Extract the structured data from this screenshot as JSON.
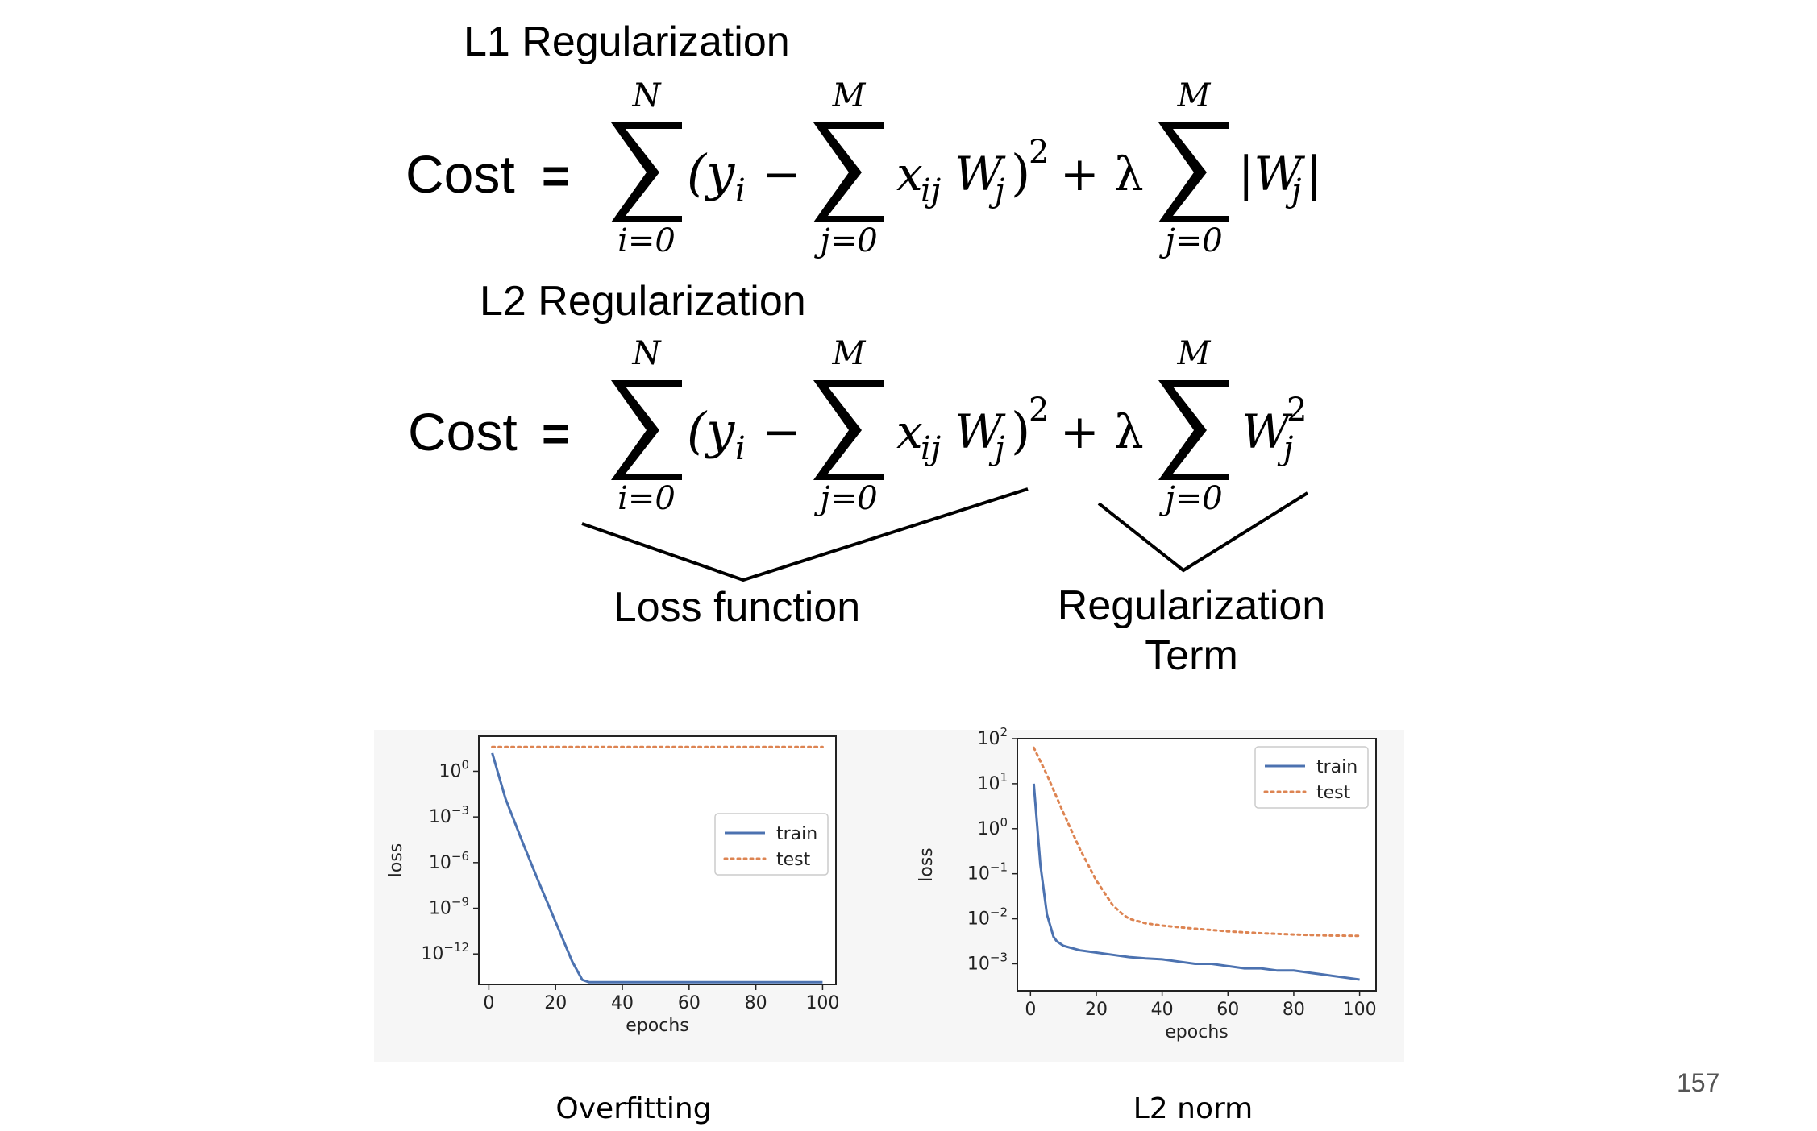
{
  "slide": {
    "page_number": "157"
  },
  "l1": {
    "heading": "L1 Regularization",
    "cost_label": "Cost",
    "equals": "=",
    "sum1": {
      "upper": "N",
      "lower": "i=0"
    },
    "sum2": {
      "upper": "M",
      "lower": "j=0"
    },
    "sum3": {
      "upper": "M",
      "lower": "j=0"
    },
    "term1_open": "(y",
    "term1_sub": "i",
    "minus": "−",
    "term2": "x",
    "term2_sub": "ij",
    "term2_w": "W",
    "term2_wsub": "j",
    "close_pow": ")",
    "pow": "2",
    "plus_lambda": "+ λ",
    "reg_term": "|W",
    "reg_sub": "j",
    "reg_close": "|"
  },
  "l2": {
    "heading": "L2 Regularization",
    "cost_label": "Cost",
    "equals": "=",
    "sum1": {
      "upper": "N",
      "lower": "i=0"
    },
    "sum2": {
      "upper": "M",
      "lower": "j=0"
    },
    "sum3": {
      "upper": "M",
      "lower": "j=0"
    },
    "term1_open": "(y",
    "term1_sub": "i",
    "minus": "−",
    "term2": "x",
    "term2_sub": "ij",
    "term2_w": "W",
    "term2_wsub": "j",
    "close_pow": ")",
    "pow": "2",
    "plus_lambda": "+ λ",
    "reg_term": "W",
    "reg_sub": "j",
    "reg_pow": "2"
  },
  "brackets": {
    "loss_label": "Loss function",
    "reg_label_line1": "Regularization",
    "reg_label_line2": "Term"
  },
  "chart_data": [
    {
      "type": "line",
      "caption": "Overfitting",
      "xlabel": "epochs",
      "ylabel": "loss",
      "xlim": [
        -3,
        104
      ],
      "ylim_log10": [
        -14,
        2.3
      ],
      "y_scale": "log",
      "xticks": [
        "0",
        "20",
        "40",
        "60",
        "80",
        "100"
      ],
      "xtick_values": [
        0,
        20,
        40,
        60,
        80,
        100
      ],
      "yticks": [
        {
          "base": "10",
          "exp": "0",
          "value": 0
        },
        {
          "base": "10",
          "exp": "−3",
          "value": -3
        },
        {
          "base": "10",
          "exp": "−6",
          "value": -6
        },
        {
          "base": "10",
          "exp": "−9",
          "value": -9
        },
        {
          "base": "10",
          "exp": "−12",
          "value": -12
        }
      ],
      "legend": {
        "position": "center-right",
        "entries": [
          "train",
          "test"
        ]
      },
      "series": [
        {
          "name": "train",
          "style": "solid",
          "color": "#4c72b0",
          "x": [
            1,
            5,
            10,
            15,
            20,
            25,
            28,
            30,
            32,
            35,
            38,
            40,
            42,
            45,
            48,
            50,
            52,
            55,
            58,
            60,
            62,
            65,
            68,
            70,
            72,
            75,
            78,
            80,
            82,
            85,
            88,
            90,
            92,
            95,
            98,
            100
          ],
          "log10_y": [
            1.2,
            -1.8,
            -4.6,
            -7.3,
            -9.9,
            -12.5,
            -13.7,
            -14.1,
            -14.2,
            -14.3,
            -14.5,
            -14.6,
            -14.6,
            -14.8,
            -15.0,
            -15.1,
            -15.3,
            -15.3,
            -15.2,
            -15.3,
            -15.4,
            -15.4,
            -15.5,
            -15.3,
            -15.6,
            -15.5,
            -15.7,
            -15.5,
            -15.6,
            -15.5,
            -15.5,
            -15.6,
            -15.4,
            -15.5,
            -15.4,
            -15.3
          ]
        },
        {
          "name": "test",
          "style": "dotted",
          "color": "#dd8452",
          "x": [
            1,
            100
          ],
          "log10_y": [
            1.6,
            1.6
          ]
        }
      ]
    },
    {
      "type": "line",
      "caption": "L2 norm",
      "xlabel": "epochs",
      "ylabel": "loss",
      "xlim": [
        -4,
        105
      ],
      "ylim_log10": [
        -3.6,
        2.0
      ],
      "y_scale": "log",
      "xticks": [
        "0",
        "20",
        "40",
        "60",
        "80",
        "100"
      ],
      "xtick_values": [
        0,
        20,
        40,
        60,
        80,
        100
      ],
      "yticks": [
        {
          "base": "10",
          "exp": "2",
          "value": 2
        },
        {
          "base": "10",
          "exp": "1",
          "value": 1
        },
        {
          "base": "10",
          "exp": "0",
          "value": 0
        },
        {
          "base": "10",
          "exp": "−1",
          "value": -1
        },
        {
          "base": "10",
          "exp": "−2",
          "value": -2
        },
        {
          "base": "10",
          "exp": "−3",
          "value": -3
        }
      ],
      "legend": {
        "position": "top-right",
        "entries": [
          "train",
          "test"
        ]
      },
      "series": [
        {
          "name": "train",
          "style": "solid",
          "color": "#4c72b0",
          "x": [
            1,
            3,
            5,
            7,
            8,
            10,
            15,
            20,
            25,
            30,
            35,
            40,
            45,
            50,
            55,
            60,
            65,
            70,
            75,
            80,
            85,
            90,
            95,
            100
          ],
          "log10_y": [
            1.0,
            -0.8,
            -1.9,
            -2.4,
            -2.5,
            -2.6,
            -2.7,
            -2.75,
            -2.8,
            -2.85,
            -2.88,
            -2.9,
            -2.95,
            -3.0,
            -3.0,
            -3.05,
            -3.1,
            -3.1,
            -3.15,
            -3.15,
            -3.2,
            -3.25,
            -3.3,
            -3.35
          ]
        },
        {
          "name": "test",
          "style": "dotted",
          "color": "#dd8452",
          "x": [
            1,
            5,
            10,
            15,
            20,
            25,
            28,
            30,
            35,
            40,
            50,
            60,
            70,
            80,
            90,
            100
          ],
          "log10_y": [
            1.8,
            1.2,
            0.35,
            -0.45,
            -1.15,
            -1.7,
            -1.9,
            -2.0,
            -2.1,
            -2.15,
            -2.22,
            -2.28,
            -2.32,
            -2.35,
            -2.37,
            -2.38
          ]
        }
      ]
    }
  ],
  "colors": {
    "train": "#4c72b0",
    "test": "#dd8452",
    "chart_background": "#f6f6f6",
    "axes_frame": "#222222"
  }
}
